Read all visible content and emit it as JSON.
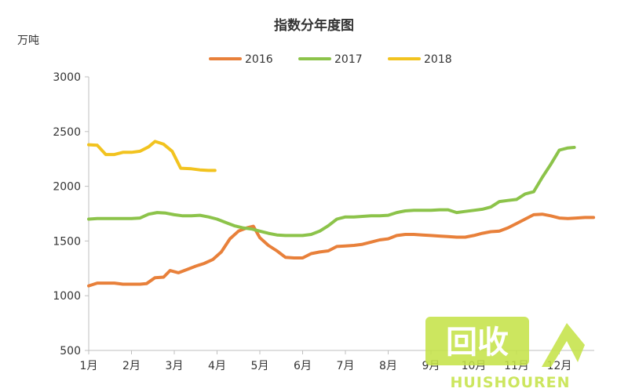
{
  "chart_data": {
    "type": "line",
    "title": "指数分年度图",
    "ylabel": "万吨",
    "xlabel": "",
    "ylim": [
      500,
      3000
    ],
    "yticks": [
      500,
      1000,
      1500,
      2000,
      2500,
      3000
    ],
    "xlim": [
      1,
      12.8
    ],
    "x_tick_labels": [
      "1月",
      "2月",
      "3月",
      "4月",
      "5月",
      "6月",
      "7月",
      "8月",
      "9月",
      "10月",
      "11月",
      "12月"
    ],
    "grid": false,
    "legend": "top-center",
    "series": [
      {
        "name": "2016",
        "color": "#E8803A",
        "points": [
          [
            1.0,
            1090
          ],
          [
            1.2,
            1115
          ],
          [
            1.4,
            1115
          ],
          [
            1.6,
            1115
          ],
          [
            1.8,
            1105
          ],
          [
            2.0,
            1105
          ],
          [
            2.2,
            1105
          ],
          [
            2.35,
            1110
          ],
          [
            2.55,
            1165
          ],
          [
            2.75,
            1170
          ],
          [
            2.9,
            1230
          ],
          [
            3.1,
            1210
          ],
          [
            3.3,
            1240
          ],
          [
            3.5,
            1270
          ],
          [
            3.7,
            1295
          ],
          [
            3.9,
            1330
          ],
          [
            4.1,
            1400
          ],
          [
            4.3,
            1520
          ],
          [
            4.5,
            1590
          ],
          [
            4.7,
            1620
          ],
          [
            4.85,
            1635
          ],
          [
            5.0,
            1530
          ],
          [
            5.2,
            1460
          ],
          [
            5.4,
            1410
          ],
          [
            5.6,
            1350
          ],
          [
            5.8,
            1345
          ],
          [
            6.0,
            1345
          ],
          [
            6.2,
            1385
          ],
          [
            6.4,
            1400
          ],
          [
            6.6,
            1410
          ],
          [
            6.8,
            1450
          ],
          [
            7.0,
            1455
          ],
          [
            7.2,
            1460
          ],
          [
            7.4,
            1470
          ],
          [
            7.6,
            1490
          ],
          [
            7.8,
            1510
          ],
          [
            8.0,
            1520
          ],
          [
            8.2,
            1550
          ],
          [
            8.4,
            1560
          ],
          [
            8.6,
            1560
          ],
          [
            8.8,
            1555
          ],
          [
            9.0,
            1550
          ],
          [
            9.2,
            1545
          ],
          [
            9.4,
            1540
          ],
          [
            9.6,
            1535
          ],
          [
            9.8,
            1535
          ],
          [
            10.0,
            1550
          ],
          [
            10.2,
            1570
          ],
          [
            10.4,
            1585
          ],
          [
            10.6,
            1590
          ],
          [
            10.8,
            1620
          ],
          [
            11.0,
            1660
          ],
          [
            11.2,
            1700
          ],
          [
            11.4,
            1740
          ],
          [
            11.6,
            1745
          ],
          [
            11.8,
            1730
          ],
          [
            12.0,
            1710
          ],
          [
            12.2,
            1705
          ],
          [
            12.4,
            1710
          ],
          [
            12.6,
            1715
          ],
          [
            12.8,
            1715
          ]
        ]
      },
      {
        "name": "2017",
        "color": "#8CC34A",
        "points": [
          [
            1.0,
            1700
          ],
          [
            1.2,
            1705
          ],
          [
            1.4,
            1705
          ],
          [
            1.6,
            1705
          ],
          [
            1.8,
            1705
          ],
          [
            2.0,
            1705
          ],
          [
            2.2,
            1710
          ],
          [
            2.4,
            1745
          ],
          [
            2.6,
            1760
          ],
          [
            2.8,
            1755
          ],
          [
            3.0,
            1740
          ],
          [
            3.2,
            1730
          ],
          [
            3.4,
            1730
          ],
          [
            3.6,
            1735
          ],
          [
            3.8,
            1720
          ],
          [
            4.0,
            1700
          ],
          [
            4.2,
            1670
          ],
          [
            4.4,
            1640
          ],
          [
            4.6,
            1620
          ],
          [
            4.8,
            1610
          ],
          [
            5.0,
            1590
          ],
          [
            5.2,
            1570
          ],
          [
            5.4,
            1555
          ],
          [
            5.6,
            1550
          ],
          [
            5.8,
            1550
          ],
          [
            6.0,
            1550
          ],
          [
            6.2,
            1560
          ],
          [
            6.4,
            1590
          ],
          [
            6.6,
            1640
          ],
          [
            6.8,
            1700
          ],
          [
            7.0,
            1720
          ],
          [
            7.2,
            1720
          ],
          [
            7.4,
            1725
          ],
          [
            7.6,
            1730
          ],
          [
            7.8,
            1730
          ],
          [
            8.0,
            1735
          ],
          [
            8.2,
            1760
          ],
          [
            8.4,
            1775
          ],
          [
            8.6,
            1780
          ],
          [
            8.8,
            1780
          ],
          [
            9.0,
            1780
          ],
          [
            9.2,
            1785
          ],
          [
            9.4,
            1785
          ],
          [
            9.6,
            1760
          ],
          [
            9.8,
            1770
          ],
          [
            10.0,
            1780
          ],
          [
            10.2,
            1790
          ],
          [
            10.4,
            1810
          ],
          [
            10.6,
            1860
          ],
          [
            10.8,
            1870
          ],
          [
            11.0,
            1880
          ],
          [
            11.2,
            1930
          ],
          [
            11.4,
            1950
          ],
          [
            11.6,
            2080
          ],
          [
            11.8,
            2200
          ],
          [
            12.0,
            2330
          ],
          [
            12.2,
            2350
          ],
          [
            12.35,
            2355
          ]
        ]
      },
      {
        "name": "2018",
        "color": "#F2C31F",
        "points": [
          [
            1.0,
            2380
          ],
          [
            1.2,
            2375
          ],
          [
            1.4,
            2290
          ],
          [
            1.6,
            2290
          ],
          [
            1.8,
            2310
          ],
          [
            2.0,
            2310
          ],
          [
            2.2,
            2320
          ],
          [
            2.4,
            2360
          ],
          [
            2.55,
            2410
          ],
          [
            2.75,
            2385
          ],
          [
            2.95,
            2320
          ],
          [
            3.15,
            2165
          ],
          [
            3.4,
            2160
          ],
          [
            3.6,
            2150
          ],
          [
            3.8,
            2145
          ],
          [
            3.95,
            2145
          ]
        ]
      }
    ]
  },
  "watermark": {
    "text": "HUISHOUREN",
    "badge_text": "回收",
    "color": "#C5E34A"
  }
}
